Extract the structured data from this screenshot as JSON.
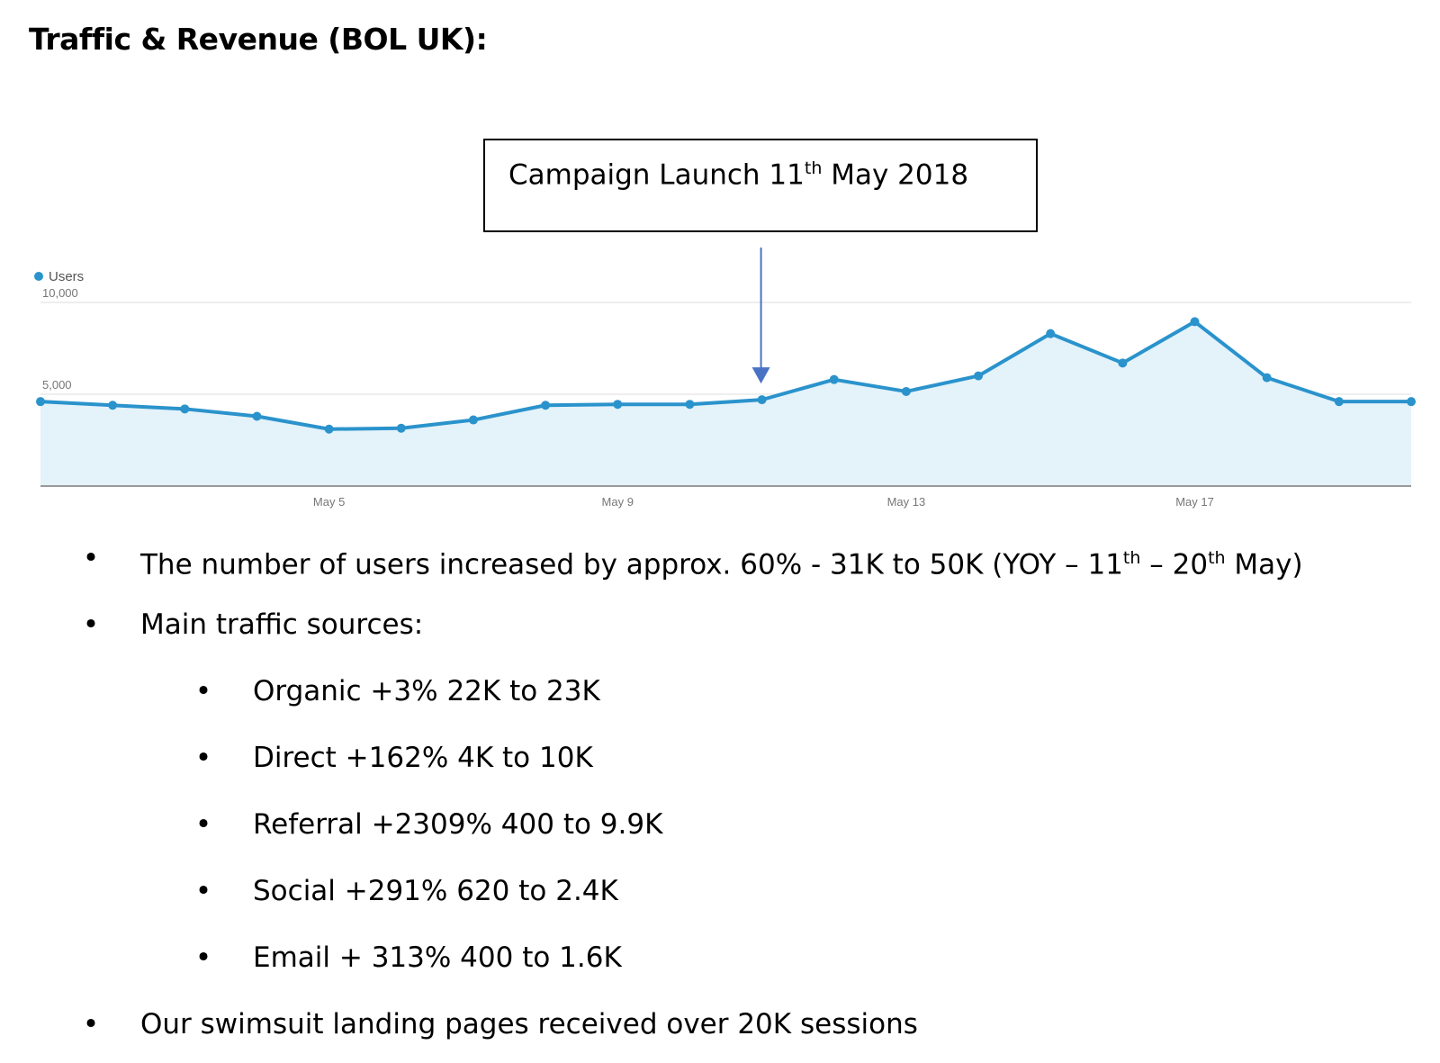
{
  "page": {
    "title": "Traffic & Revenue (BOL UK):"
  },
  "callout": {
    "text_main": "Campaign Launch 11",
    "text_sup": "th",
    "text_end": " May 2018"
  },
  "chart_data": {
    "type": "area",
    "series": [
      {
        "name": "Users",
        "values": [
          4600,
          4400,
          4200,
          3800,
          3100,
          3150,
          3600,
          4400,
          4450,
          4450,
          4700,
          5800,
          5150,
          6000,
          8300,
          6700,
          8950,
          5900,
          4600,
          4600
        ]
      }
    ],
    "x_tick_labels": [
      "May 5",
      "May 9",
      "May 13",
      "May 17"
    ],
    "x_tick_indices": [
      4,
      8,
      12,
      16
    ],
    "y_tick_labels": [
      "10,000",
      "5,000"
    ],
    "y_ticks": [
      10000,
      5000
    ],
    "ylim": [
      0,
      10000
    ],
    "grid": true,
    "legend": "top-left",
    "colors": {
      "line": "#2a93cc",
      "fill": "#e4f2fa",
      "grid": "#eeeeee",
      "axis": "#999999",
      "arrow": "#4a72c4"
    },
    "annotation_index": 10
  },
  "bullets": {
    "b1": {
      "t1": "The number of users increased by approx. 60% - 31K to 50K (YOY – 11",
      "s1": "th",
      "t2": " – 20",
      "s2": "th",
      "t3": " May)"
    },
    "b2": "Main traffic sources:",
    "sub": [
      "Organic +3%  22K to 23K",
      "Direct +162%  4K to 10K",
      "Referral +2309% 400 to 9.9K",
      "Social +291% 620 to 2.4K",
      "Email + 313% 400 to 1.6K"
    ],
    "b3": "Our swimsuit landing pages received over 20K sessions",
    "marker": "•"
  }
}
